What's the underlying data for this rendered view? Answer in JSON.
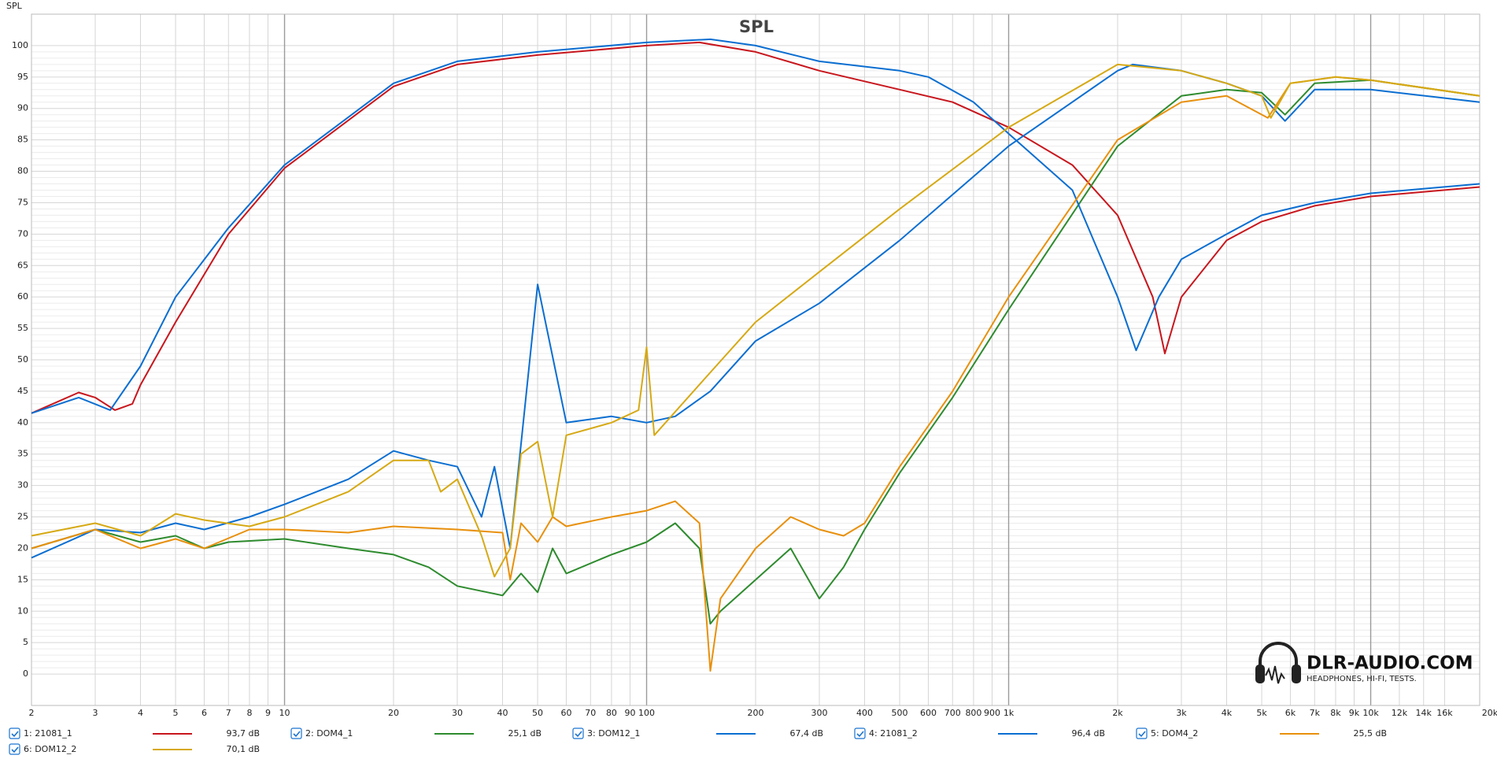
{
  "chart_data": {
    "type": "line",
    "title": "SPL",
    "y_label": "SPL",
    "xscale": "log",
    "xlim": [
      2,
      20000
    ],
    "ylim": [
      -5,
      105
    ],
    "grid": true,
    "yticks": [
      0,
      5,
      10,
      15,
      20,
      25,
      30,
      35,
      40,
      45,
      50,
      55,
      60,
      65,
      70,
      75,
      80,
      85,
      90,
      95,
      100
    ],
    "xticks": [
      2,
      3,
      4,
      5,
      6,
      7,
      8,
      9,
      10,
      20,
      30,
      40,
      50,
      60,
      70,
      80,
      90,
      100,
      200,
      300,
      400,
      500,
      600,
      700,
      800,
      900,
      {
        "value": 1000,
        "label": "1k"
      },
      {
        "value": 2000,
        "label": "2k"
      },
      {
        "value": 3000,
        "label": "3k"
      },
      {
        "value": 4000,
        "label": "4k"
      },
      {
        "value": 5000,
        "label": "5k"
      },
      {
        "value": 6000,
        "label": "6k"
      },
      {
        "value": 7000,
        "label": "7k"
      },
      {
        "value": 8000,
        "label": "8k"
      },
      {
        "value": 9000,
        "label": "9k"
      },
      {
        "value": 10000,
        "label": "10k"
      },
      {
        "value": 12000,
        "label": "12k"
      },
      {
        "value": 14000,
        "label": "14k"
      },
      {
        "value": 16000,
        "label": "16k"
      },
      {
        "value": 20000,
        "label": "20kHz"
      }
    ],
    "series": [
      {
        "name": "1: 21081_1",
        "color": "#c8161d",
        "readout": "93,7 dB",
        "x": [
          2,
          2.7,
          3,
          3.4,
          3.8,
          4,
          5,
          7,
          10,
          20,
          30,
          50,
          100,
          140,
          200,
          300,
          500,
          700,
          1000,
          1500,
          2000,
          2500,
          2700,
          3000,
          4000,
          5000,
          7000,
          10000,
          20000
        ],
        "values": [
          41.5,
          44.8,
          44,
          42,
          43,
          46,
          56,
          70,
          80.5,
          93.5,
          97,
          98.5,
          100,
          100.5,
          99,
          96,
          93,
          91,
          87,
          81,
          73,
          60,
          51,
          60,
          69,
          72,
          74.5,
          76,
          77.5
        ]
      },
      {
        "name": "2: DOM4_1",
        "color": "#2e8b2e",
        "readout": "25,1 dB",
        "x": [
          2,
          3,
          4,
          5,
          6,
          7,
          10,
          15,
          20,
          25,
          30,
          40,
          45,
          50,
          55,
          60,
          80,
          100,
          120,
          140,
          150,
          160,
          200,
          250,
          300,
          350,
          400,
          500,
          700,
          1000,
          2000,
          3000,
          4000,
          5000,
          5800,
          7000,
          10000,
          20000
        ],
        "values": [
          20,
          23,
          21,
          22,
          20,
          21,
          21.5,
          20,
          19,
          17,
          14,
          12.5,
          16,
          13,
          20,
          16,
          19,
          21,
          24,
          20,
          8,
          10,
          15,
          20,
          12,
          17,
          23,
          32,
          44,
          58,
          84,
          92,
          93,
          92.5,
          89,
          94,
          94.5,
          92
        ]
      },
      {
        "name": "3: DOM12_1",
        "color": "#0a6ed1",
        "readout": "67,4 dB",
        "x": [
          2,
          3,
          4,
          5,
          6,
          8,
          10,
          15,
          20,
          25,
          30,
          35,
          38,
          42,
          50,
          60,
          80,
          100,
          120,
          150,
          200,
          300,
          500,
          1000,
          2000,
          2200,
          3000,
          4000,
          5000,
          5800,
          7000,
          10000,
          20000
        ],
        "values": [
          18.5,
          23,
          22.5,
          24,
          23,
          25,
          27,
          31,
          35.5,
          34,
          33,
          25,
          33,
          20,
          62,
          40,
          41,
          40,
          41,
          45,
          53,
          59,
          69,
          84,
          96,
          97,
          96,
          94,
          92,
          88,
          93,
          93,
          91
        ]
      },
      {
        "name": "4: 21081_2",
        "color": "#0a6ed1",
        "readout": "96,4 dB",
        "x": [
          2,
          2.7,
          3.3,
          4,
          5,
          7,
          10,
          20,
          30,
          50,
          100,
          150,
          200,
          300,
          500,
          600,
          800,
          1000,
          1500,
          2000,
          2250,
          2600,
          3000,
          4000,
          5000,
          7000,
          10000,
          20000
        ],
        "values": [
          41.5,
          44,
          42,
          49,
          60,
          71,
          81,
          94,
          97.5,
          99,
          100.5,
          101,
          100,
          97.5,
          96,
          95,
          91,
          86,
          77,
          60,
          51.5,
          60,
          66,
          70,
          73,
          75,
          76.5,
          78
        ]
      },
      {
        "name": "5: DOM4_2",
        "color": "#e8900c",
        "readout": "25,5 dB",
        "x": [
          2,
          3,
          4,
          5,
          6,
          8,
          10,
          15,
          20,
          30,
          40,
          42,
          45,
          50,
          55,
          60,
          80,
          100,
          120,
          140,
          150,
          160,
          200,
          250,
          300,
          350,
          400,
          500,
          700,
          1000,
          2000,
          3000,
          4000,
          5200,
          6000,
          8000,
          10000,
          20000
        ],
        "values": [
          20,
          23,
          20,
          21.5,
          20,
          23,
          23,
          22.5,
          23.5,
          23,
          22.5,
          15,
          24,
          21,
          25,
          23.5,
          25,
          26,
          27.5,
          24,
          0.5,
          12,
          20,
          25,
          23,
          22,
          24,
          33,
          45,
          60,
          85,
          91,
          92,
          88.5,
          94,
          95,
          94.5,
          92
        ]
      },
      {
        "name": "6: DOM12_2",
        "color": "#d6a914",
        "readout": "70,1 dB",
        "x": [
          2,
          3,
          4,
          5,
          6,
          8,
          10,
          15,
          20,
          25,
          27,
          30,
          35,
          38,
          42,
          45,
          50,
          55,
          60,
          80,
          95,
          100,
          105,
          150,
          200,
          300,
          500,
          1000,
          2000,
          3000,
          4000,
          5000,
          5300,
          6000,
          8000,
          10000,
          20000
        ],
        "values": [
          22,
          24,
          22,
          25.5,
          24.5,
          23.5,
          25,
          29,
          34,
          34,
          29,
          31,
          22,
          15.5,
          20,
          35,
          37,
          25,
          38,
          40,
          42,
          52,
          38,
          48,
          56,
          64,
          74,
          87,
          97,
          96,
          94,
          92,
          88.5,
          94,
          95,
          94.5,
          92
        ]
      }
    ]
  },
  "logo": {
    "title": "DLR-AUDIO.COM",
    "subtitle": "HEADPHONES, HI-FI, TESTS."
  }
}
